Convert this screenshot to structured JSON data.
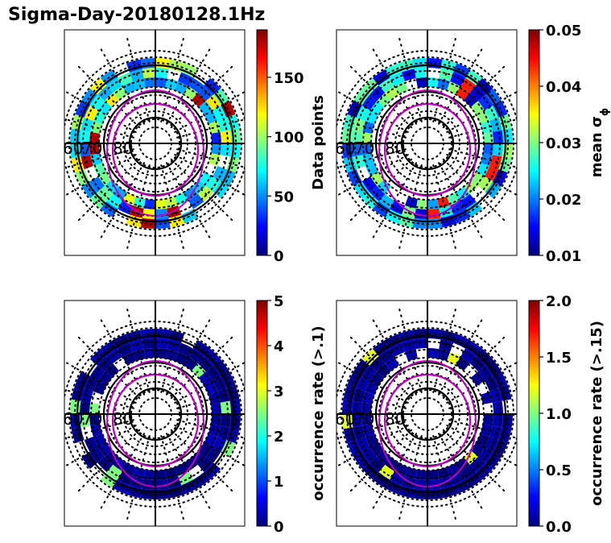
{
  "title": "Sigma-Day-20180128.1Hz",
  "colormap": [
    "#00007f",
    "#0000ff",
    "#007fff",
    "#00ffff",
    "#7fff7f",
    "#ffff00",
    "#ff7f00",
    "#ff0000",
    "#7f0000"
  ],
  "lat_labels": [
    "60",
    "70",
    "80"
  ],
  "chart_data": [
    {
      "type": "heatmap",
      "projection": "polar",
      "colorbar_label": "Data points",
      "colorbar_ticks": [
        "0",
        "50",
        "100",
        "150"
      ],
      "colorbar_range": [
        0,
        190
      ],
      "typical_level": 0.4,
      "hot_level": 0.95
    },
    {
      "type": "heatmap",
      "projection": "polar",
      "colorbar_label": "mean σ",
      "colorbar_label_subscript": "ϕ",
      "colorbar_ticks": [
        "0.01",
        "0.02",
        "0.03",
        "0.04",
        "0.05"
      ],
      "colorbar_range": [
        0.01,
        0.05
      ],
      "typical_level": 0.3,
      "hot_level": 0.85
    },
    {
      "type": "heatmap",
      "projection": "polar",
      "colorbar_label": "occurrence rate (>.1)",
      "colorbar_ticks": [
        "0",
        "1",
        "2",
        "3",
        "4",
        "5"
      ],
      "colorbar_range": [
        0,
        5
      ],
      "typical_level": 0.02,
      "hot_level": 0.5
    },
    {
      "type": "heatmap",
      "projection": "polar",
      "colorbar_label": "occurrence rate (>.15)",
      "colorbar_ticks": [
        "0.0",
        "0.5",
        "1.0",
        "1.5",
        "2.0"
      ],
      "colorbar_range": [
        0,
        2
      ],
      "typical_level": 0.02,
      "hot_level": 0.6
    }
  ]
}
